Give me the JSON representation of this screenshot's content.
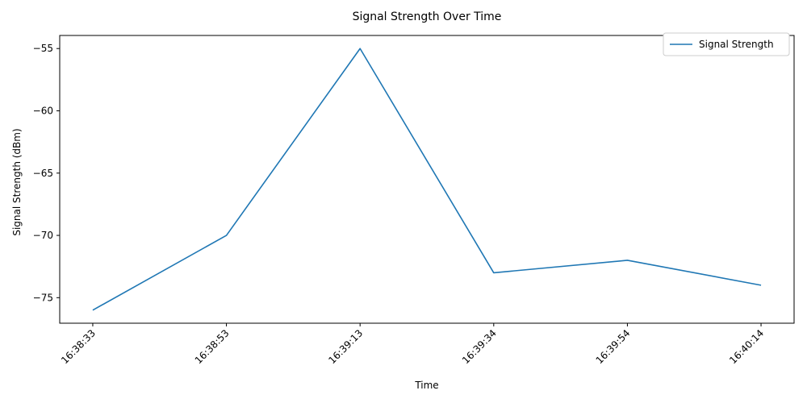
{
  "chart_data": {
    "type": "line",
    "title": "Signal Strength Over Time",
    "xlabel": "Time",
    "ylabel": "Signal Strength (dBm)",
    "categories": [
      "16:38:33",
      "16:38:53",
      "16:39:13",
      "16:39:34",
      "16:39:54",
      "16:40:14"
    ],
    "series": [
      {
        "name": "Signal Strength",
        "color": "#1f77b4",
        "values": [
          -76,
          -70,
          -55,
          -73,
          -72,
          -74
        ]
      }
    ],
    "ylim": [
      -77.05,
      -53.95
    ],
    "yticks": [
      -75,
      -70,
      -65,
      -60,
      -55
    ],
    "ytick_labels": [
      "−75",
      "−70",
      "−65",
      "−60",
      "−55"
    ],
    "grid": false,
    "legend_position": "top-right"
  }
}
